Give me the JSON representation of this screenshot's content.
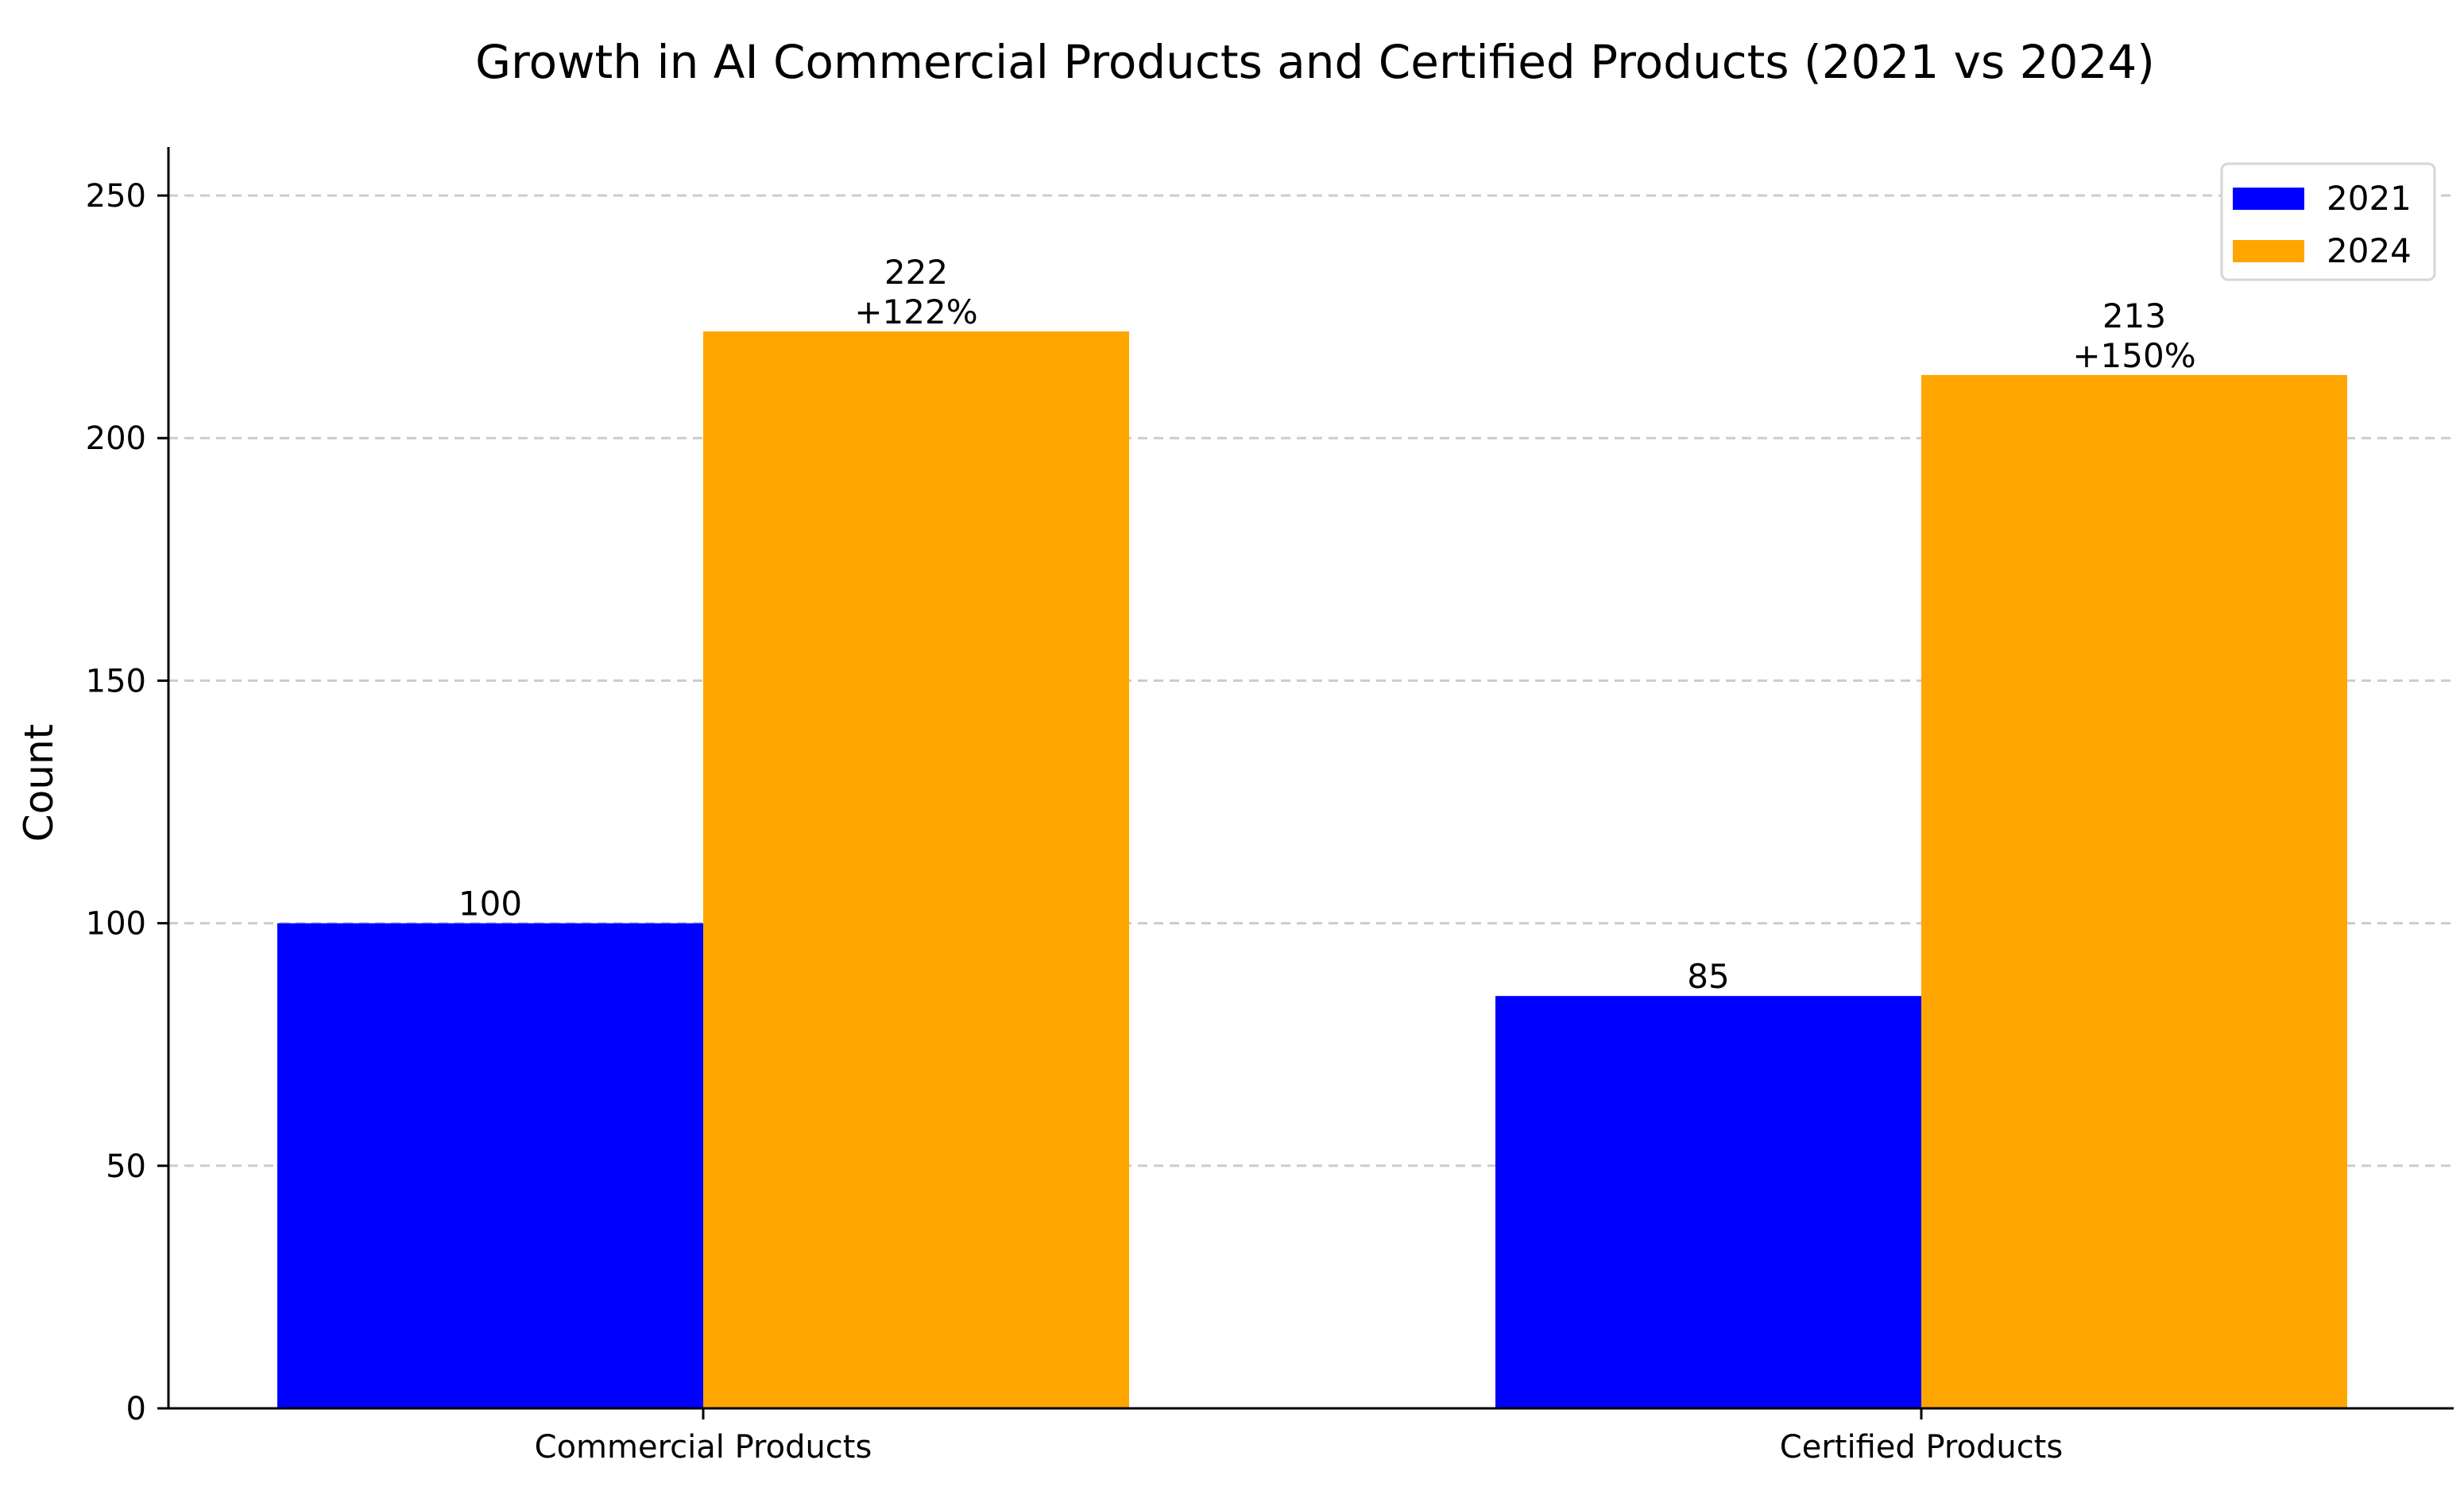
{
  "chart_data": {
    "type": "bar",
    "title": "Growth in AI Commercial Products and Certified Products (2021 vs 2024)",
    "xlabel": "",
    "ylabel": "Count",
    "categories": [
      "Commercial Products",
      "Certified Products"
    ],
    "series": [
      {
        "name": "2021",
        "color": "#0000ff",
        "values": [
          100,
          85
        ],
        "labels": [
          "100",
          "85"
        ]
      },
      {
        "name": "2024",
        "color": "#ffa500",
        "values": [
          222,
          213
        ],
        "labels": [
          "222",
          "213"
        ],
        "growth_labels": [
          "+122%",
          "+150%"
        ]
      }
    ],
    "ylim": [
      0,
      260
    ],
    "yticks": [
      0,
      50,
      100,
      150,
      200,
      250
    ],
    "grid": "horizontal-dashed",
    "legend_position": "top-right",
    "gridline_color": "#cccccc",
    "axis_color": "#000000"
  }
}
